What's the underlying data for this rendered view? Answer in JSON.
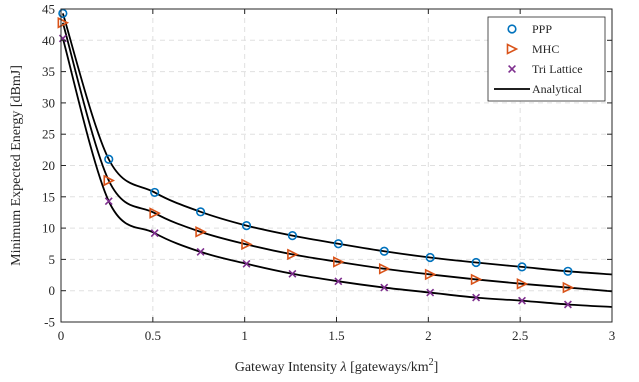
{
  "chart_data": {
    "type": "scatter",
    "xlabel": "Gateway Intensity",
    "xlabel_symbol": "λ",
    "xlabel_units_prefix": "[gateways/km",
    "xlabel_units_sup": "2",
    "xlabel_units_suffix": "]",
    "ylabel": "Minimum Expected Energy [dBmJ]",
    "xlim": [
      0,
      3
    ],
    "ylim": [
      -5,
      45
    ],
    "xticks": [
      0,
      0.5,
      1,
      1.5,
      2,
      2.5,
      3
    ],
    "xtick_labels": [
      "0",
      "0.5",
      "1",
      "1.5",
      "2",
      "2.5",
      "3"
    ],
    "yticks": [
      -5,
      0,
      5,
      10,
      15,
      20,
      25,
      30,
      35,
      40,
      45
    ],
    "ytick_labels": [
      "-5",
      "0",
      "5",
      "10",
      "15",
      "20",
      "25",
      "30",
      "35",
      "40",
      "45"
    ],
    "grid": true,
    "legend_position": "top-right",
    "x": [
      0.01,
      0.26,
      0.51,
      0.76,
      1.01,
      1.26,
      1.51,
      1.76,
      2.01,
      2.26,
      2.51,
      2.76
    ],
    "series": [
      {
        "name": "PPP",
        "marker": "circle",
        "color": "#0072BD",
        "values": [
          44.3,
          21.0,
          15.7,
          12.6,
          10.4,
          8.8,
          7.5,
          6.3,
          5.3,
          4.5,
          3.8,
          3.1
        ]
      },
      {
        "name": "MHC",
        "marker": "triangle-right",
        "color": "#D95319",
        "values": [
          42.8,
          17.6,
          12.4,
          9.4,
          7.4,
          5.8,
          4.6,
          3.5,
          2.6,
          1.8,
          1.1,
          0.5
        ]
      },
      {
        "name": "Tri Lattice",
        "marker": "x",
        "color": "#7E2F8E",
        "values": [
          40.3,
          14.3,
          9.2,
          6.2,
          4.3,
          2.7,
          1.5,
          0.5,
          -0.3,
          -1.1,
          -1.6,
          -2.2
        ]
      }
    ],
    "analytical": {
      "name": "Analytical",
      "color": "#000000",
      "curves": [
        {
          "x": [
            0.01,
            0.26,
            0.51,
            0.76,
            1.01,
            1.26,
            1.51,
            1.76,
            2.01,
            2.26,
            2.51,
            2.76,
            3.0
          ],
          "y": [
            44.3,
            21.0,
            15.7,
            12.6,
            10.4,
            8.8,
            7.5,
            6.3,
            5.3,
            4.5,
            3.8,
            3.1,
            2.6
          ]
        },
        {
          "x": [
            0.01,
            0.26,
            0.51,
            0.76,
            1.01,
            1.26,
            1.51,
            1.76,
            2.01,
            2.26,
            2.51,
            2.76,
            3.0
          ],
          "y": [
            42.8,
            17.6,
            12.4,
            9.4,
            7.4,
            5.8,
            4.6,
            3.5,
            2.6,
            1.8,
            1.1,
            0.5,
            -0.1
          ]
        },
        {
          "x": [
            0.01,
            0.26,
            0.51,
            0.76,
            1.01,
            1.26,
            1.51,
            1.76,
            2.01,
            2.26,
            2.51,
            2.76,
            3.0
          ],
          "y": [
            40.3,
            14.3,
            9.2,
            6.2,
            4.3,
            2.7,
            1.5,
            0.5,
            -0.3,
            -1.1,
            -1.6,
            -2.2,
            -2.6
          ]
        }
      ]
    },
    "colors": {
      "grid": "#e0e0e0",
      "axis": "#262626"
    }
  }
}
